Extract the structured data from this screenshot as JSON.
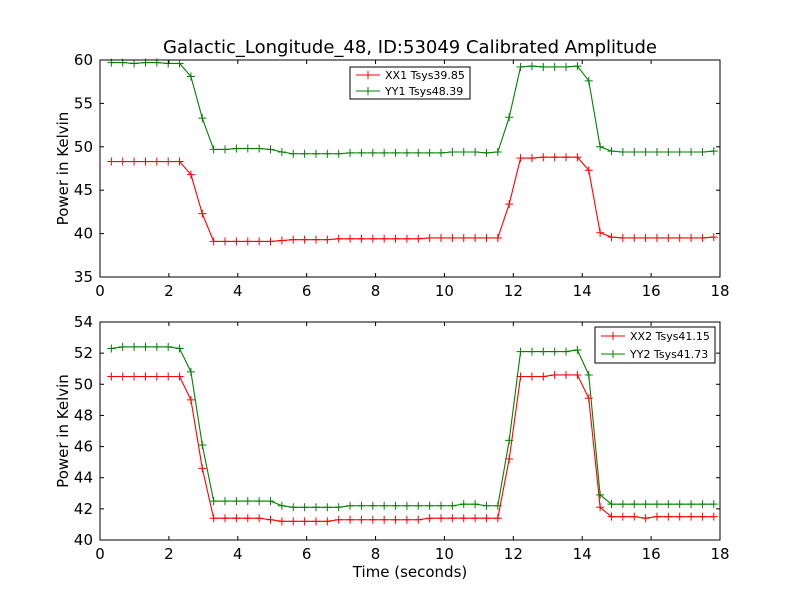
{
  "figure": {
    "title": "Galactic_Longitude_48, ID:53049 Calibrated Amplitude"
  },
  "chart_data": [
    {
      "type": "line",
      "title": "",
      "xlabel": "",
      "ylabel": "Power in Kelvin",
      "xlim": [
        0,
        18
      ],
      "ylim": [
        35,
        60
      ],
      "xticks": [
        "0",
        "2",
        "4",
        "6",
        "8",
        "10",
        "12",
        "14",
        "16",
        "18"
      ],
      "yticks": [
        "35",
        "40",
        "45",
        "50",
        "55",
        "60"
      ],
      "grid": false,
      "legend_position": "top-center",
      "x": [
        0.33,
        0.66,
        0.99,
        1.32,
        1.65,
        1.98,
        2.31,
        2.64,
        2.97,
        3.3,
        3.63,
        3.96,
        4.29,
        4.62,
        4.95,
        5.28,
        5.61,
        5.94,
        6.27,
        6.6,
        6.93,
        7.26,
        7.59,
        7.92,
        8.25,
        8.58,
        8.91,
        9.24,
        9.57,
        9.9,
        10.23,
        10.56,
        10.89,
        11.22,
        11.55,
        11.88,
        12.21,
        12.54,
        12.87,
        13.2,
        13.53,
        13.86,
        14.19,
        14.52,
        14.85,
        15.18,
        15.51,
        15.84,
        16.17,
        16.5,
        16.83,
        17.16,
        17.49,
        17.82
      ],
      "series": [
        {
          "name": "XX1 Tsys39.85",
          "color": "#ff0000",
          "values": [
            48.3,
            48.3,
            48.3,
            48.3,
            48.3,
            48.3,
            48.3,
            46.8,
            42.3,
            39.1,
            39.1,
            39.1,
            39.1,
            39.1,
            39.1,
            39.2,
            39.3,
            39.3,
            39.3,
            39.3,
            39.4,
            39.4,
            39.4,
            39.4,
            39.4,
            39.4,
            39.4,
            39.4,
            39.5,
            39.5,
            39.5,
            39.5,
            39.5,
            39.5,
            39.5,
            43.4,
            48.7,
            48.7,
            48.8,
            48.8,
            48.8,
            48.8,
            47.3,
            40.1,
            39.6,
            39.5,
            39.5,
            39.5,
            39.5,
            39.5,
            39.5,
            39.5,
            39.5,
            39.6
          ]
        },
        {
          "name": "YY1 Tsys48.39",
          "color": "#008000",
          "values": [
            59.7,
            59.7,
            59.6,
            59.7,
            59.7,
            59.6,
            59.6,
            58.1,
            53.3,
            49.7,
            49.7,
            49.8,
            49.8,
            49.8,
            49.7,
            49.4,
            49.2,
            49.2,
            49.2,
            49.2,
            49.2,
            49.3,
            49.3,
            49.3,
            49.3,
            49.3,
            49.3,
            49.3,
            49.3,
            49.3,
            49.4,
            49.4,
            49.4,
            49.3,
            49.4,
            53.4,
            59.2,
            59.3,
            59.2,
            59.2,
            59.2,
            59.3,
            57.6,
            50.0,
            49.5,
            49.4,
            49.4,
            49.4,
            49.4,
            49.4,
            49.4,
            49.4,
            49.4,
            49.5
          ]
        }
      ]
    },
    {
      "type": "line",
      "title": "",
      "xlabel": "Time (seconds)",
      "ylabel": "Power in Kelvin",
      "xlim": [
        0,
        18
      ],
      "ylim": [
        40,
        54
      ],
      "xticks": [
        "0",
        "2",
        "4",
        "6",
        "8",
        "10",
        "12",
        "14",
        "16",
        "18"
      ],
      "yticks": [
        "40",
        "42",
        "44",
        "46",
        "48",
        "50",
        "52",
        "54"
      ],
      "grid": false,
      "legend_position": "top-right",
      "x": [
        0.33,
        0.66,
        0.99,
        1.32,
        1.65,
        1.98,
        2.31,
        2.64,
        2.97,
        3.3,
        3.63,
        3.96,
        4.29,
        4.62,
        4.95,
        5.28,
        5.61,
        5.94,
        6.27,
        6.6,
        6.93,
        7.26,
        7.59,
        7.92,
        8.25,
        8.58,
        8.91,
        9.24,
        9.57,
        9.9,
        10.23,
        10.56,
        10.89,
        11.22,
        11.55,
        11.88,
        12.21,
        12.54,
        12.87,
        13.2,
        13.53,
        13.86,
        14.19,
        14.52,
        14.85,
        15.18,
        15.51,
        15.84,
        16.17,
        16.5,
        16.83,
        17.16,
        17.49,
        17.82
      ],
      "series": [
        {
          "name": "XX2 Tsys41.15",
          "color": "#ff0000",
          "values": [
            50.5,
            50.5,
            50.5,
            50.5,
            50.5,
            50.5,
            50.5,
            49.0,
            44.6,
            41.4,
            41.4,
            41.4,
            41.4,
            41.4,
            41.3,
            41.2,
            41.2,
            41.2,
            41.2,
            41.2,
            41.3,
            41.3,
            41.3,
            41.3,
            41.3,
            41.3,
            41.3,
            41.3,
            41.4,
            41.4,
            41.4,
            41.4,
            41.4,
            41.4,
            41.4,
            45.2,
            50.5,
            50.5,
            50.5,
            50.6,
            50.6,
            50.6,
            49.1,
            42.1,
            41.5,
            41.5,
            41.5,
            41.4,
            41.5,
            41.5,
            41.5,
            41.5,
            41.5,
            41.5
          ]
        },
        {
          "name": "YY2 Tsys41.73",
          "color": "#008000",
          "values": [
            52.3,
            52.4,
            52.4,
            52.4,
            52.4,
            52.4,
            52.3,
            50.8,
            46.1,
            42.5,
            42.5,
            42.5,
            42.5,
            42.5,
            42.5,
            42.2,
            42.1,
            42.1,
            42.1,
            42.1,
            42.1,
            42.2,
            42.2,
            42.2,
            42.2,
            42.2,
            42.2,
            42.2,
            42.2,
            42.2,
            42.2,
            42.3,
            42.3,
            42.2,
            42.2,
            46.4,
            52.1,
            52.1,
            52.1,
            52.1,
            52.1,
            52.2,
            50.6,
            42.9,
            42.3,
            42.3,
            42.3,
            42.3,
            42.3,
            42.3,
            42.3,
            42.3,
            42.3,
            42.3
          ]
        }
      ]
    }
  ]
}
